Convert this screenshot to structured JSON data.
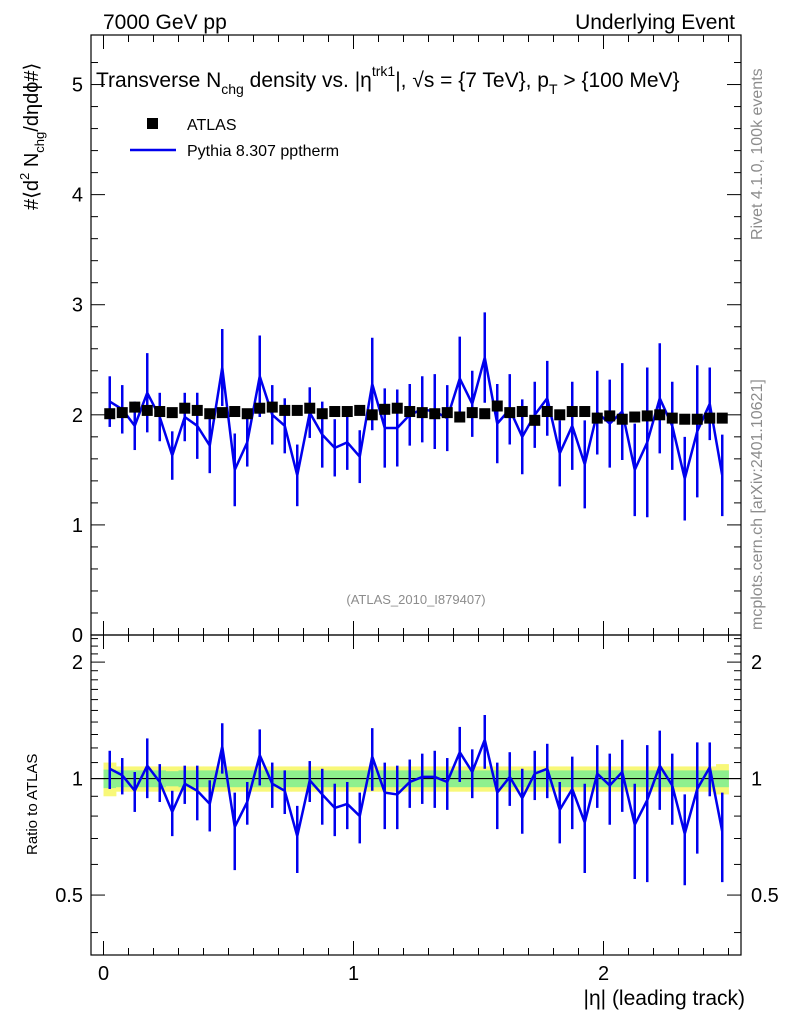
{
  "header": {
    "left": "7000 GeV pp",
    "right": "Underlying Event"
  },
  "side": {
    "rivet": "Rivet 4.1.0,  100k events",
    "mcplots": "mcplots.cern.ch [arXiv:2401.10621]"
  },
  "chart_data": {
    "type": "scatter",
    "title_parts": {
      "a": "Transverse N",
      "a_sub": "chg",
      "b": " density vs. |η",
      "b_sup": "trk1",
      "c": "|, √s = {7 TeV}, p",
      "c_sub": "T",
      "d": " > {100 MeV}"
    },
    "ylabel_parts": {
      "a": "#⟨d",
      "a_sup": "2",
      "b": " N",
      "b_sub": "chg",
      "c": "/dηdϕ#⟩"
    },
    "xlabel": "|η| (leading track)",
    "ratio_ylabel": "Ratio to ATLAS",
    "watermark": "(ATLAS_2010_I879407)",
    "xlim": [
      -0.05,
      2.55
    ],
    "ylim_main": [
      0,
      5.45
    ],
    "ylim_ratio": [
      0.35,
      2.35
    ],
    "x_ticks": [
      "0",
      "1",
      "2"
    ],
    "y_ticks_main": [
      "0",
      "1",
      "2",
      "3",
      "4",
      "5"
    ],
    "y_ticks_ratio": [
      "0.5",
      "1",
      "2"
    ],
    "series": [
      {
        "name": "ATLAS",
        "style": "markers",
        "color": "#000000",
        "x": [
          0.025,
          0.075,
          0.125,
          0.175,
          0.225,
          0.275,
          0.325,
          0.375,
          0.425,
          0.475,
          0.525,
          0.575,
          0.625,
          0.675,
          0.725,
          0.775,
          0.825,
          0.875,
          0.925,
          0.975,
          1.025,
          1.075,
          1.125,
          1.175,
          1.225,
          1.275,
          1.325,
          1.375,
          1.425,
          1.475,
          1.525,
          1.575,
          1.625,
          1.675,
          1.725,
          1.775,
          1.825,
          1.875,
          1.925,
          1.975,
          2.025,
          2.075,
          2.125,
          2.175,
          2.225,
          2.275,
          2.325,
          2.375,
          2.425,
          2.475
        ],
        "y": [
          2.01,
          2.02,
          2.07,
          2.04,
          2.03,
          2.02,
          2.06,
          2.04,
          2.01,
          2.02,
          2.03,
          2.01,
          2.06,
          2.07,
          2.04,
          2.04,
          2.06,
          2.01,
          2.03,
          2.03,
          2.04,
          2.0,
          2.05,
          2.06,
          2.03,
          2.02,
          2.01,
          2.02,
          1.98,
          2.02,
          2.01,
          2.08,
          2.02,
          2.03,
          1.95,
          2.03,
          2.0,
          2.03,
          2.03,
          1.97,
          1.99,
          1.96,
          1.98,
          1.99,
          2.0,
          1.97,
          1.96,
          1.96,
          1.97,
          1.97
        ]
      },
      {
        "name": "Pythia 8.307 pptherm",
        "style": "line+errorbars",
        "color": "#0000ee",
        "x": [
          0.025,
          0.075,
          0.125,
          0.175,
          0.225,
          0.275,
          0.325,
          0.375,
          0.425,
          0.475,
          0.525,
          0.575,
          0.625,
          0.675,
          0.725,
          0.775,
          0.825,
          0.875,
          0.925,
          0.975,
          1.025,
          1.075,
          1.125,
          1.175,
          1.225,
          1.275,
          1.325,
          1.375,
          1.425,
          1.475,
          1.525,
          1.575,
          1.625,
          1.675,
          1.725,
          1.775,
          1.825,
          1.875,
          1.925,
          1.975,
          2.025,
          2.075,
          2.125,
          2.175,
          2.225,
          2.275,
          2.325,
          2.375,
          2.425,
          2.475
        ],
        "y": [
          2.12,
          2.05,
          1.9,
          2.2,
          1.98,
          1.63,
          1.98,
          1.9,
          1.72,
          2.43,
          1.5,
          1.75,
          2.35,
          2.0,
          1.9,
          1.45,
          2.02,
          1.82,
          1.7,
          1.75,
          1.62,
          2.28,
          1.88,
          1.88,
          2.0,
          2.05,
          2.03,
          1.97,
          2.33,
          2.1,
          2.52,
          1.92,
          2.05,
          1.8,
          2.0,
          2.15,
          1.65,
          1.9,
          1.55,
          2.02,
          1.92,
          2.03,
          1.5,
          1.75,
          2.15,
          1.9,
          1.42,
          1.85,
          2.1,
          1.45
        ],
        "yerr": [
          0.23,
          0.22,
          0.22,
          0.36,
          0.22,
          0.22,
          0.22,
          0.3,
          0.25,
          0.35,
          0.33,
          0.22,
          0.37,
          0.27,
          0.25,
          0.28,
          0.23,
          0.3,
          0.26,
          0.25,
          0.24,
          0.42,
          0.36,
          0.35,
          0.28,
          0.3,
          0.34,
          0.3,
          0.38,
          0.3,
          0.41,
          0.36,
          0.32,
          0.34,
          0.3,
          0.34,
          0.3,
          0.4,
          0.4,
          0.38,
          0.4,
          0.44,
          0.42,
          0.68,
          0.5,
          0.4,
          0.38,
          0.6,
          0.33,
          0.37
        ],
        "ratio": [
          1.06,
          1.02,
          0.93,
          1.08,
          0.98,
          0.82,
          0.97,
          0.93,
          0.86,
          1.21,
          0.75,
          0.87,
          1.15,
          0.97,
          0.93,
          0.71,
          0.99,
          0.91,
          0.84,
          0.86,
          0.8,
          1.14,
          0.92,
          0.91,
          0.98,
          1.01,
          1.01,
          0.98,
          1.17,
          1.04,
          1.26,
          0.92,
          1.01,
          0.89,
          1.03,
          1.06,
          0.83,
          0.94,
          0.77,
          1.03,
          0.96,
          1.04,
          0.76,
          0.88,
          1.08,
          0.96,
          0.72,
          0.94,
          1.07,
          0.73
        ],
        "ratio_err": [
          0.12,
          0.11,
          0.11,
          0.19,
          0.11,
          0.11,
          0.11,
          0.15,
          0.13,
          0.18,
          0.17,
          0.11,
          0.19,
          0.13,
          0.12,
          0.14,
          0.12,
          0.15,
          0.13,
          0.12,
          0.12,
          0.21,
          0.18,
          0.17,
          0.14,
          0.15,
          0.17,
          0.15,
          0.19,
          0.15,
          0.2,
          0.18,
          0.16,
          0.17,
          0.15,
          0.17,
          0.15,
          0.2,
          0.2,
          0.19,
          0.2,
          0.22,
          0.21,
          0.34,
          0.25,
          0.2,
          0.19,
          0.3,
          0.17,
          0.19
        ]
      }
    ],
    "ratio_band": {
      "stat_halfwidth": [
        0.055,
        0.05,
        0.05,
        0.05,
        0.05,
        0.045,
        0.05,
        0.05,
        0.05,
        0.05,
        0.05,
        0.05,
        0.05,
        0.05,
        0.05,
        0.05,
        0.05,
        0.05,
        0.05,
        0.05,
        0.05,
        0.05,
        0.05,
        0.05,
        0.05,
        0.05,
        0.05,
        0.05,
        0.05,
        0.05,
        0.05,
        0.05,
        0.05,
        0.05,
        0.05,
        0.05,
        0.05,
        0.05,
        0.05,
        0.05,
        0.05,
        0.05,
        0.05,
        0.05,
        0.05,
        0.05,
        0.05,
        0.05,
        0.05,
        0.05
      ],
      "total_halfwidth": [
        0.1,
        0.075,
        0.075,
        0.075,
        0.075,
        0.075,
        0.075,
        0.075,
        0.075,
        0.075,
        0.075,
        0.075,
        0.075,
        0.075,
        0.075,
        0.075,
        0.075,
        0.075,
        0.075,
        0.075,
        0.075,
        0.075,
        0.075,
        0.075,
        0.075,
        0.075,
        0.075,
        0.075,
        0.075,
        0.075,
        0.075,
        0.075,
        0.075,
        0.075,
        0.075,
        0.075,
        0.075,
        0.075,
        0.075,
        0.075,
        0.075,
        0.075,
        0.075,
        0.075,
        0.075,
        0.075,
        0.075,
        0.075,
        0.075,
        0.09
      ],
      "stat_color": "#8ef08e",
      "total_color": "#f8f878"
    },
    "legend": [
      {
        "label": "ATLAS",
        "marker": "square",
        "color": "#000000"
      },
      {
        "label": "Pythia 8.307 pptherm",
        "marker": "line",
        "color": "#0000ee"
      }
    ]
  }
}
